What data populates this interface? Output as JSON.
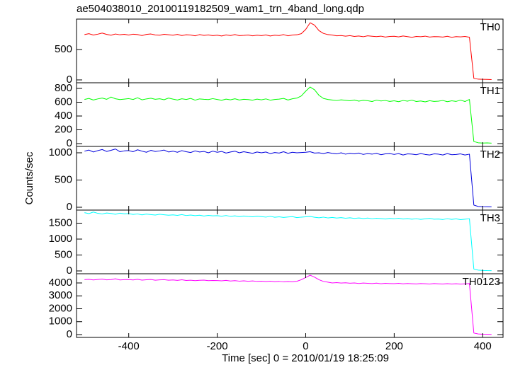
{
  "chart_data": [
    {
      "type": "line",
      "title": "ae504038010_20100119182509_wam1_trn_4band_long.qdp",
      "x": [
        -500,
        -490,
        -480,
        -470,
        -460,
        -450,
        -440,
        -430,
        -420,
        -410,
        -400,
        -390,
        -380,
        -370,
        -360,
        -350,
        -340,
        -330,
        -320,
        -310,
        -300,
        -290,
        -280,
        -270,
        -260,
        -250,
        -240,
        -230,
        -220,
        -210,
        -200,
        -190,
        -180,
        -170,
        -160,
        -150,
        -140,
        -130,
        -120,
        -110,
        -100,
        -90,
        -80,
        -70,
        -60,
        -50,
        -40,
        -30,
        -20,
        -10,
        0,
        10,
        20,
        30,
        40,
        50,
        60,
        70,
        80,
        90,
        100,
        110,
        120,
        130,
        140,
        150,
        160,
        170,
        180,
        190,
        200,
        210,
        220,
        230,
        240,
        250,
        260,
        270,
        280,
        290,
        300,
        310,
        320,
        330,
        340,
        350,
        360,
        370,
        380,
        390,
        400,
        410,
        420
      ],
      "series": [
        {
          "name": "TH0",
          "color": "#ff0000",
          "values": [
            745,
            760,
            738,
            752,
            770,
            748,
            735,
            755,
            742,
            750,
            738,
            752,
            745,
            730,
            748,
            755,
            740,
            735,
            750,
            742,
            735,
            748,
            730,
            742,
            738,
            725,
            745,
            732,
            740,
            728,
            735,
            722,
            740,
            730,
            745,
            728,
            732,
            738,
            725,
            735,
            728,
            740,
            722,
            735,
            730,
            745,
            725,
            738,
            742,
            760,
            830,
            940,
            900,
            810,
            765,
            745,
            738,
            725,
            730,
            720,
            728,
            715,
            722,
            710,
            725,
            718,
            712,
            720,
            705,
            715,
            718,
            708,
            722,
            712,
            700,
            715,
            710,
            720,
            705,
            712,
            710,
            705,
            718,
            700,
            712,
            708,
            715,
            702,
            25,
            12,
            10,
            8,
            6
          ]
        }
      ],
      "xlim": [
        -518,
        446
      ],
      "ylim": [
        -47,
        1000
      ],
      "yticks": [
        0,
        500
      ]
    },
    {
      "type": "line",
      "x": [
        -500,
        -490,
        -480,
        -470,
        -460,
        -450,
        -440,
        -430,
        -420,
        -410,
        -400,
        -390,
        -380,
        -370,
        -360,
        -350,
        -340,
        -330,
        -320,
        -310,
        -300,
        -290,
        -280,
        -270,
        -260,
        -250,
        -240,
        -230,
        -220,
        -210,
        -200,
        -190,
        -180,
        -170,
        -160,
        -150,
        -140,
        -130,
        -120,
        -110,
        -100,
        -90,
        -80,
        -70,
        -60,
        -50,
        -40,
        -30,
        -20,
        -10,
        0,
        10,
        20,
        30,
        40,
        50,
        60,
        70,
        80,
        90,
        100,
        110,
        120,
        130,
        140,
        150,
        160,
        170,
        180,
        190,
        200,
        210,
        220,
        230,
        240,
        250,
        260,
        270,
        280,
        290,
        300,
        310,
        320,
        330,
        340,
        350,
        360,
        370,
        380,
        390,
        400,
        410,
        420
      ],
      "series": [
        {
          "name": "TH1",
          "color": "#00ff00",
          "values": [
            640,
            655,
            632,
            648,
            660,
            642,
            675,
            650,
            638,
            645,
            652,
            640,
            665,
            635,
            648,
            658,
            642,
            650,
            636,
            660,
            645,
            632,
            650,
            640,
            655,
            630,
            648,
            642,
            638,
            652,
            640,
            628,
            645,
            635,
            650,
            632,
            642,
            638,
            630,
            645,
            635,
            648,
            630,
            640,
            645,
            655,
            632,
            650,
            660,
            690,
            760,
            820,
            780,
            700,
            655,
            640,
            632,
            625,
            635,
            628,
            620,
            632,
            615,
            628,
            622,
            610,
            630,
            618,
            625,
            612,
            620,
            608,
            625,
            615,
            630,
            610,
            618,
            605,
            622,
            612,
            615,
            625,
            608,
            620,
            612,
            630,
            610,
            640,
            30,
            12,
            8,
            10,
            6
          ]
        }
      ],
      "xlim": [
        -518,
        446
      ],
      "ylim": [
        -41,
        882
      ],
      "yticks": [
        0,
        200,
        400,
        600,
        800
      ]
    },
    {
      "type": "line",
      "ylabel": "Counts/sec",
      "x": [
        -500,
        -490,
        -480,
        -470,
        -460,
        -450,
        -440,
        -430,
        -420,
        -410,
        -400,
        -390,
        -380,
        -370,
        -360,
        -350,
        -340,
        -330,
        -320,
        -310,
        -300,
        -290,
        -280,
        -270,
        -260,
        -250,
        -240,
        -230,
        -220,
        -210,
        -200,
        -190,
        -180,
        -170,
        -160,
        -150,
        -140,
        -130,
        -120,
        -110,
        -100,
        -90,
        -80,
        -70,
        -60,
        -50,
        -40,
        -30,
        -20,
        -10,
        0,
        10,
        20,
        30,
        40,
        50,
        60,
        70,
        80,
        90,
        100,
        110,
        120,
        130,
        140,
        150,
        160,
        170,
        180,
        190,
        200,
        210,
        220,
        230,
        240,
        250,
        260,
        270,
        280,
        290,
        300,
        310,
        320,
        330,
        340,
        350,
        360,
        370,
        380,
        390,
        400,
        410,
        420
      ],
      "series": [
        {
          "name": "TH2",
          "color": "#0000dd",
          "values": [
            1030,
            1050,
            1015,
            1040,
            1060,
            1025,
            1045,
            1070,
            1020,
            1035,
            1040,
            1020,
            1055,
            1030,
            1010,
            1045,
            1025,
            1035,
            1050,
            1015,
            1030,
            1010,
            1040,
            1020,
            1005,
            1035,
            1015,
            1025,
            1000,
            1030,
            1010,
            1025,
            995,
            1015,
            1030,
            1000,
            1020,
            1005,
            990,
            1015,
            1000,
            1015,
            985,
            1005,
            995,
            1020,
            990,
            1010,
            1000,
            1005,
            1010,
            1020,
            995,
            1000,
            985,
            1005,
            990,
            980,
            1000,
            975,
            990,
            980,
            995,
            970,
            985,
            975,
            990,
            965,
            980,
            985,
            970,
            985,
            960,
            980,
            975,
            965,
            985,
            970,
            960,
            980,
            975,
            960,
            985,
            965,
            970,
            980,
            960,
            975,
            40,
            15,
            10,
            8,
            6
          ]
        }
      ],
      "xlim": [
        -518,
        446
      ],
      "ylim": [
        -52,
        1117
      ],
      "yticks": [
        0,
        500,
        1000
      ]
    },
    {
      "type": "line",
      "x": [
        -500,
        -490,
        -480,
        -470,
        -460,
        -450,
        -440,
        -430,
        -420,
        -410,
        -400,
        -390,
        -380,
        -370,
        -360,
        -350,
        -340,
        -330,
        -320,
        -310,
        -300,
        -290,
        -280,
        -270,
        -260,
        -250,
        -240,
        -230,
        -220,
        -210,
        -200,
        -190,
        -180,
        -170,
        -160,
        -150,
        -140,
        -130,
        -120,
        -110,
        -100,
        -90,
        -80,
        -70,
        -60,
        -50,
        -40,
        -30,
        -20,
        -10,
        0,
        10,
        20,
        30,
        40,
        50,
        60,
        70,
        80,
        90,
        100,
        110,
        120,
        130,
        140,
        150,
        160,
        170,
        180,
        190,
        200,
        210,
        220,
        230,
        240,
        250,
        260,
        270,
        280,
        290,
        300,
        310,
        320,
        330,
        340,
        350,
        360,
        370,
        380,
        390,
        400,
        410,
        420
      ],
      "series": [
        {
          "name": "TH3",
          "color": "#00ffff",
          "values": [
            1830,
            1800,
            1850,
            1810,
            1790,
            1820,
            1805,
            1780,
            1815,
            1795,
            1800,
            1775,
            1790,
            1760,
            1785,
            1770,
            1755,
            1780,
            1765,
            1750,
            1760,
            1745,
            1770,
            1740,
            1755,
            1735,
            1750,
            1725,
            1745,
            1730,
            1735,
            1720,
            1740,
            1715,
            1730,
            1705,
            1725,
            1710,
            1700,
            1720,
            1705,
            1690,
            1715,
            1685,
            1700,
            1680,
            1695,
            1705,
            1675,
            1690,
            1700,
            1710,
            1685,
            1670,
            1690,
            1665,
            1680,
            1660,
            1675,
            1655,
            1670,
            1650,
            1665,
            1645,
            1660,
            1640,
            1655,
            1645,
            1630,
            1650,
            1640,
            1655,
            1630,
            1645,
            1625,
            1640,
            1620,
            1635,
            1650,
            1625,
            1630,
            1615,
            1640,
            1620,
            1635,
            1610,
            1625,
            1640,
            60,
            25,
            15,
            10,
            8
          ]
        }
      ],
      "xlim": [
        -518,
        446
      ],
      "ylim": [
        -89,
        1911
      ],
      "yticks": [
        0,
        500,
        1000,
        1500
      ]
    },
    {
      "type": "line",
      "xlabel": "Time [sec] 0 = 2010/01/19 18:25:09",
      "x": [
        -500,
        -490,
        -480,
        -470,
        -460,
        -450,
        -440,
        -430,
        -420,
        -410,
        -400,
        -390,
        -380,
        -370,
        -360,
        -350,
        -340,
        -330,
        -320,
        -310,
        -300,
        -290,
        -280,
        -270,
        -260,
        -250,
        -240,
        -230,
        -220,
        -210,
        -200,
        -190,
        -180,
        -170,
        -160,
        -150,
        -140,
        -130,
        -120,
        -110,
        -100,
        -90,
        -80,
        -70,
        -60,
        -50,
        -40,
        -30,
        -20,
        -10,
        0,
        10,
        20,
        30,
        40,
        50,
        60,
        70,
        80,
        90,
        100,
        110,
        120,
        130,
        140,
        150,
        160,
        170,
        180,
        190,
        200,
        210,
        220,
        230,
        240,
        250,
        260,
        270,
        280,
        290,
        300,
        310,
        320,
        330,
        340,
        350,
        360,
        370,
        380,
        390,
        400,
        410,
        420
      ],
      "series": [
        {
          "name": "TH0123",
          "color": "#ff00ff",
          "values": [
            4250,
            4280,
            4230,
            4270,
            4300,
            4240,
            4260,
            4320,
            4235,
            4255,
            4260,
            4230,
            4280,
            4220,
            4245,
            4270,
            4215,
            4240,
            4255,
            4210,
            4230,
            4200,
            4245,
            4190,
            4215,
            4180,
            4205,
            4220,
            4175,
            4195,
            4185,
            4165,
            4200,
            4150,
            4175,
            4140,
            4165,
            4130,
            4155,
            4120,
            4140,
            4110,
            4135,
            4095,
            4120,
            4085,
            4110,
            4090,
            4130,
            4250,
            4420,
            4600,
            4450,
            4250,
            4120,
            4060,
            4000,
            4030,
            3990,
            4010,
            3980,
            4000,
            3960,
            3990,
            3970,
            3950,
            3985,
            3940,
            3970,
            3955,
            3945,
            3970,
            3930,
            3960,
            3940,
            3925,
            3955,
            3935,
            3920,
            3950,
            3930,
            3915,
            3945,
            3920,
            3935,
            3910,
            3930,
            3950,
            120,
            50,
            30,
            20,
            15
          ]
        }
      ],
      "xlim": [
        -518,
        446
      ],
      "ylim": [
        -219,
        4712
      ],
      "yticks": [
        0,
        1000,
        2000,
        3000,
        4000
      ],
      "xticks": [
        -400,
        -200,
        0,
        200,
        400
      ]
    }
  ]
}
